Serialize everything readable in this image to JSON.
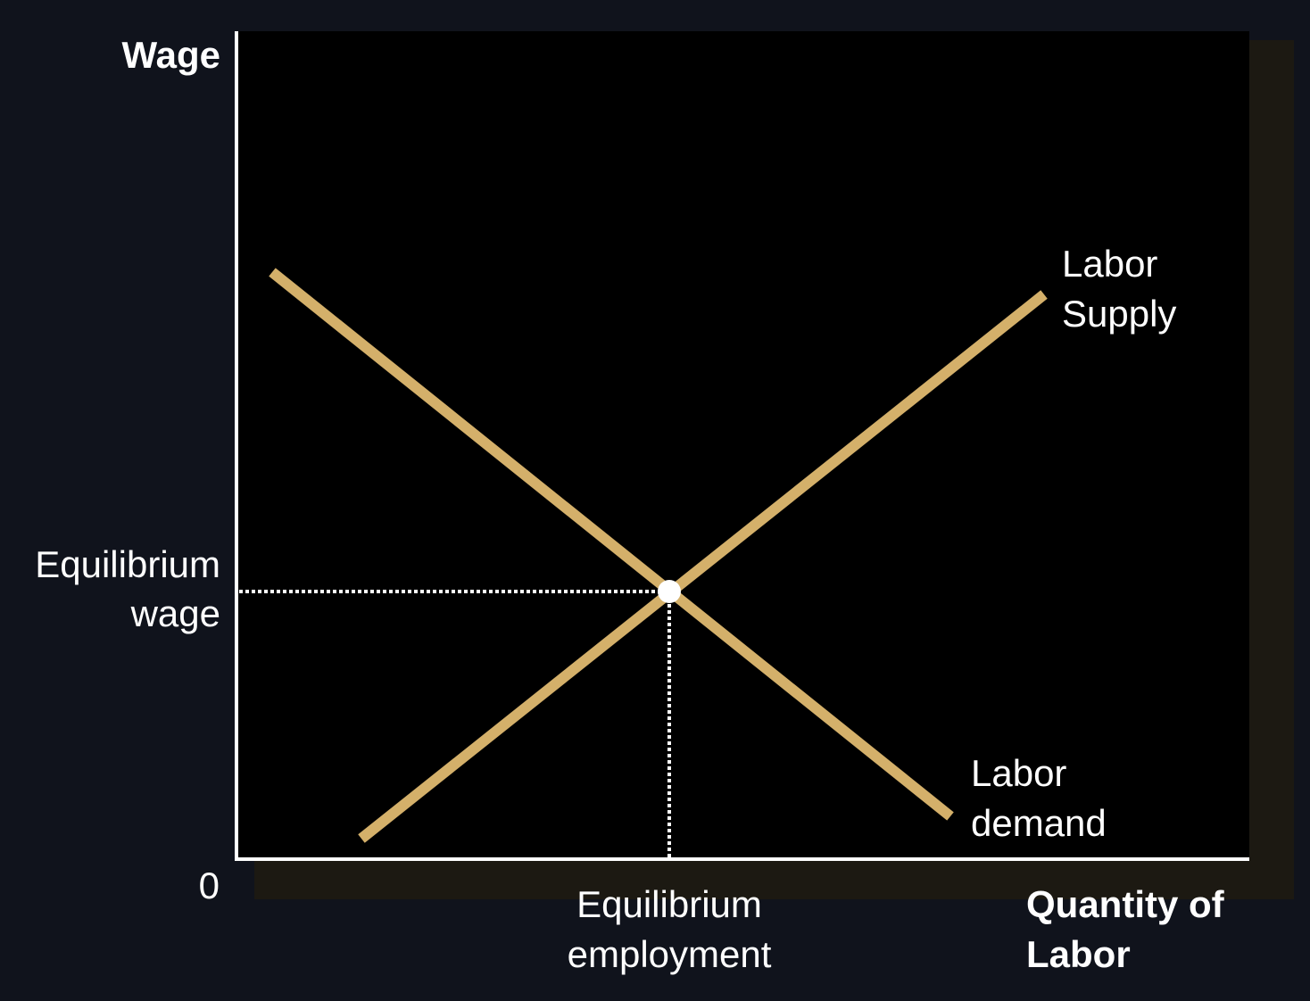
{
  "axes": {
    "y_label": "Wage",
    "x_label_lines": [
      "Quantity of",
      "Labor"
    ],
    "origin": "0"
  },
  "curves": [
    {
      "label_lines": [
        "Labor",
        "Supply"
      ]
    },
    {
      "label_lines": [
        "Labor",
        "demand"
      ]
    }
  ],
  "equilibrium": {
    "wage_label_lines": [
      "Equilibrium",
      "wage"
    ],
    "employment_label_lines": [
      "Equilibrium",
      "employment"
    ]
  }
}
